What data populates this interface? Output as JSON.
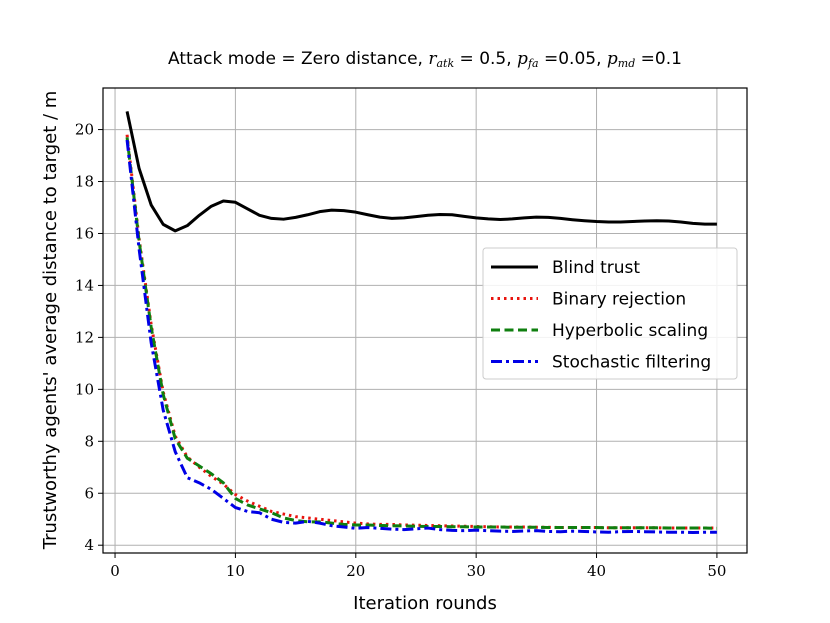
{
  "chart_data": {
    "type": "line",
    "title_parts": {
      "prefix": "Attack mode = Zero distance, ",
      "r_var": "r",
      "r_sub": "atk",
      "r_val": " = 0.5, ",
      "pfa_var": "p",
      "pfa_sub": "fa",
      "pfa_val": " =0.05, ",
      "pmd_var": "p",
      "pmd_sub": "md",
      "pmd_val": " =0.1"
    },
    "xlabel": "Iteration rounds",
    "ylabel": "Trustworthy agents' average distance to target / m",
    "xlim": [
      -1,
      52.5
    ],
    "ylim": [
      3.7,
      21.6
    ],
    "xticks": [
      0,
      10,
      20,
      30,
      40,
      50
    ],
    "yticks": [
      4,
      6,
      8,
      10,
      12,
      14,
      16,
      18,
      20
    ],
    "grid": true,
    "legend_position": "center-right",
    "x": [
      1,
      2,
      3,
      4,
      5,
      6,
      7,
      8,
      9,
      10,
      11,
      12,
      13,
      14,
      15,
      16,
      17,
      18,
      19,
      20,
      21,
      22,
      23,
      24,
      25,
      26,
      27,
      28,
      29,
      30,
      31,
      32,
      33,
      34,
      35,
      36,
      37,
      38,
      39,
      40,
      41,
      42,
      43,
      44,
      45,
      46,
      47,
      48,
      49,
      50
    ],
    "series": [
      {
        "name": "Blind trust",
        "color": "#000000",
        "style": "solid",
        "values": [
          20.7,
          18.5,
          17.1,
          16.35,
          16.1,
          16.3,
          16.7,
          17.05,
          17.25,
          17.2,
          16.95,
          16.7,
          16.58,
          16.55,
          16.62,
          16.72,
          16.84,
          16.9,
          16.88,
          16.82,
          16.72,
          16.63,
          16.58,
          16.6,
          16.65,
          16.7,
          16.73,
          16.72,
          16.66,
          16.6,
          16.56,
          16.54,
          16.56,
          16.6,
          16.63,
          16.62,
          16.58,
          16.53,
          16.49,
          16.46,
          16.44,
          16.44,
          16.46,
          16.48,
          16.49,
          16.48,
          16.44,
          16.39,
          16.36,
          16.36
        ]
      },
      {
        "name": "Binary rejection",
        "color": "#e8140e",
        "style": "dotted",
        "values": [
          19.8,
          15.8,
          12.5,
          9.9,
          8.2,
          7.4,
          7.0,
          6.65,
          6.35,
          5.95,
          5.7,
          5.5,
          5.3,
          5.2,
          5.1,
          5.05,
          5.0,
          4.95,
          4.9,
          4.85,
          4.82,
          4.8,
          4.8,
          4.78,
          4.77,
          4.76,
          4.75,
          4.74,
          4.73,
          4.72,
          4.71,
          4.7,
          4.7,
          4.7,
          4.69,
          4.69,
          4.68,
          4.68,
          4.68,
          4.68,
          4.67,
          4.67,
          4.67,
          4.67,
          4.67,
          4.66,
          4.66,
          4.66,
          4.66,
          4.66
        ]
      },
      {
        "name": "Hyperbolic scaling",
        "color": "#0f7f0f",
        "style": "dashed",
        "values": [
          19.7,
          15.7,
          12.4,
          9.8,
          8.1,
          7.35,
          7.05,
          6.75,
          6.4,
          5.8,
          5.55,
          5.4,
          5.25,
          5.05,
          4.95,
          4.9,
          4.9,
          4.85,
          4.8,
          4.78,
          4.78,
          4.76,
          4.75,
          4.74,
          4.73,
          4.72,
          4.72,
          4.71,
          4.71,
          4.7,
          4.7,
          4.7,
          4.69,
          4.69,
          4.69,
          4.68,
          4.68,
          4.68,
          4.68,
          4.68,
          4.67,
          4.67,
          4.67,
          4.67,
          4.67,
          4.66,
          4.66,
          4.66,
          4.66,
          4.65
        ]
      },
      {
        "name": "Stochastic filtering",
        "color": "#0000e6",
        "style": "dashdot",
        "values": [
          19.6,
          15.4,
          11.8,
          9.2,
          7.6,
          6.6,
          6.4,
          6.15,
          5.8,
          5.45,
          5.3,
          5.25,
          5.0,
          4.88,
          4.85,
          4.92,
          4.85,
          4.75,
          4.7,
          4.65,
          4.68,
          4.65,
          4.62,
          4.6,
          4.63,
          4.66,
          4.6,
          4.57,
          4.56,
          4.58,
          4.56,
          4.54,
          4.53,
          4.55,
          4.56,
          4.53,
          4.52,
          4.54,
          4.53,
          4.51,
          4.5,
          4.52,
          4.53,
          4.52,
          4.51,
          4.5,
          4.5,
          4.49,
          4.5,
          4.5
        ]
      }
    ]
  }
}
